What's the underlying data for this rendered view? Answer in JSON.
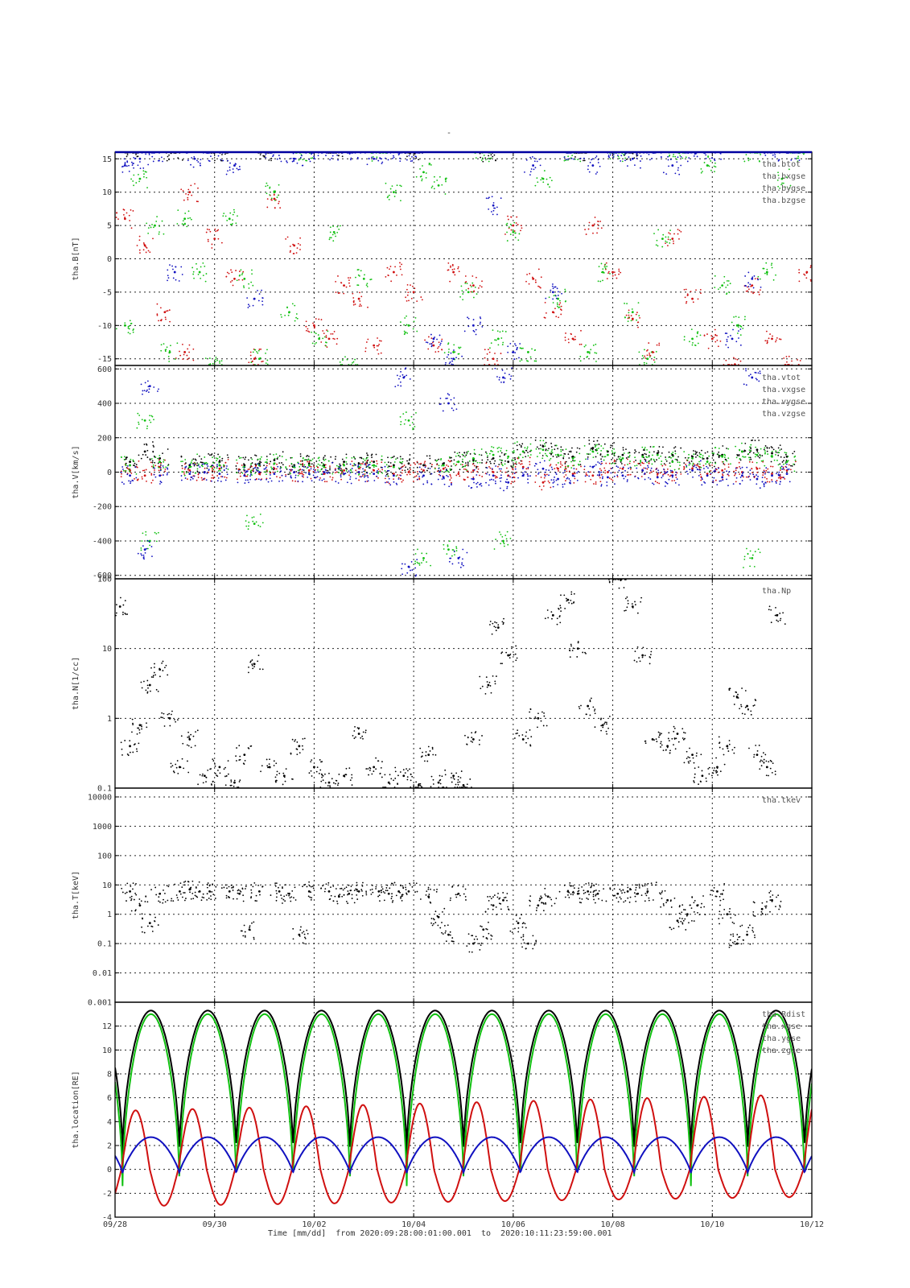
{
  "figure": {
    "title": "-",
    "footer": {
      "axis_label": "Time [mm/dd]",
      "from_label": "from",
      "start": "2020:09:28:00:01:00.001",
      "to_label": "to",
      "end": "2020:10:11:23:59:00.001"
    }
  },
  "chart_data": [
    {
      "type": "scatter",
      "panel_id": "B",
      "ylabel": "tha.B[nT]",
      "ylim": [
        -16,
        16
      ],
      "yticks": [
        -15,
        -10,
        -5,
        0,
        5,
        10,
        15
      ],
      "ytick_labels": [
        "-15",
        "-10",
        "-5",
        "0",
        "5",
        "10",
        "15"
      ],
      "grid": true,
      "legend_position": "top-right",
      "x_unit": "day offset from 09/28 00:00",
      "xlim": [
        0,
        14
      ],
      "series": [
        {
          "name": "tha.btot",
          "color": "#000000",
          "x": [
            0.3,
            1.2,
            2.1,
            3.0,
            4.4,
            6.0,
            7.5,
            9.4,
            10.4
          ],
          "y": [
            16,
            16,
            16,
            16,
            16,
            16,
            16,
            16,
            16
          ]
        },
        {
          "name": "tha.bxgse",
          "color": "#d01010",
          "x": [
            0.2,
            0.6,
            1.0,
            1.4,
            1.5,
            2.0,
            2.4,
            2.8,
            3.2,
            3.6,
            4.0,
            4.3,
            4.6,
            4.9,
            5.2,
            5.6,
            6.0,
            6.4,
            6.8,
            7.2,
            7.6,
            8.0,
            8.4,
            8.8,
            9.2,
            9.6,
            10.0,
            10.4,
            10.8,
            11.2,
            11.6,
            12.0,
            12.4,
            12.8,
            13.2,
            13.6,
            13.9
          ],
          "y": [
            6,
            2,
            -8,
            -14,
            10,
            3,
            -3,
            -15,
            9,
            2,
            -10,
            -12,
            -4,
            -6,
            -13,
            -2,
            -5,
            -13,
            -2,
            -4,
            -15,
            5,
            -3,
            -8,
            -12,
            5,
            -2,
            -9,
            -14,
            3,
            -6,
            -12,
            -16,
            -4,
            -12,
            -16,
            -2
          ]
        },
        {
          "name": "tha.bygse",
          "color": "#10c010",
          "x": [
            0.2,
            0.5,
            0.8,
            1.1,
            1.4,
            1.7,
            2.0,
            2.3,
            2.6,
            2.9,
            3.2,
            3.5,
            3.8,
            4.1,
            4.4,
            4.7,
            5.0,
            5.3,
            5.6,
            5.9,
            6.2,
            6.5,
            6.8,
            7.1,
            7.4,
            7.7,
            8.0,
            8.3,
            8.6,
            8.9,
            9.2,
            9.5,
            9.8,
            10.1,
            10.4,
            10.7,
            11.0,
            11.3,
            11.6,
            11.9,
            12.2,
            12.5,
            12.8,
            13.1,
            13.4,
            13.7
          ],
          "y": [
            -10,
            12,
            5,
            -14,
            6,
            -2,
            -16,
            6,
            -3,
            -15,
            10,
            -8,
            16,
            -12,
            4,
            -16,
            -3,
            16,
            10,
            -10,
            13,
            11,
            -14,
            -5,
            16,
            -12,
            4,
            -14,
            12,
            -6,
            16,
            -14,
            -2,
            16,
            -8,
            -15,
            3,
            16,
            -12,
            14,
            -4,
            -10,
            16,
            -2,
            12,
            16
          ]
        },
        {
          "name": "tha.bzgse",
          "color": "#1010c0",
          "x": [
            0.2,
            0.5,
            0.8,
            1.2,
            1.6,
            2.0,
            2.4,
            2.8,
            3.2,
            3.6,
            4.0,
            4.4,
            4.8,
            5.2,
            5.6,
            6.0,
            6.4,
            6.8,
            7.2,
            7.6,
            8.0,
            8.4,
            8.8,
            9.2,
            9.6,
            10.0,
            10.4,
            10.8,
            11.2,
            11.6,
            12.0,
            12.4,
            12.8,
            13.2,
            13.6
          ],
          "y": [
            14,
            15,
            16,
            -2,
            15,
            16,
            14,
            -6,
            16,
            15,
            16,
            16,
            16,
            15,
            16,
            16,
            -12,
            -15,
            -10,
            8,
            -14,
            14,
            -5,
            16,
            14,
            16,
            15,
            16,
            14,
            16,
            16,
            -12,
            -3,
            16,
            16
          ]
        }
      ]
    },
    {
      "type": "scatter",
      "panel_id": "V",
      "ylabel": "tha.V[km/s]",
      "ylim": [
        -620,
        620
      ],
      "yticks": [
        -600,
        -400,
        -200,
        0,
        200,
        400,
        600
      ],
      "ytick_labels": [
        "-600",
        "-400",
        "-200",
        "0",
        "200",
        "400",
        "600"
      ],
      "grid": true,
      "legend_position": "top-right",
      "x_unit": "day offset from 09/28 00:00",
      "xlim": [
        0,
        14
      ],
      "series": [
        {
          "name": "tha.vtot",
          "color": "#000000",
          "x": [
            0.3,
            0.6,
            0.9,
            1.5,
            1.8,
            2.1,
            2.6,
            2.9,
            3.2,
            3.6,
            3.9,
            4.2,
            4.6,
            4.9,
            5.2,
            5.6,
            5.9,
            6.2,
            6.6,
            6.9,
            7.2,
            7.6,
            7.9,
            8.2,
            8.6,
            8.9,
            9.2,
            9.6,
            9.9,
            10.2,
            10.6,
            10.9,
            11.2,
            11.6,
            11.9,
            12.2,
            12.6,
            12.9,
            13.2,
            13.5
          ],
          "y": [
            60,
            120,
            80,
            40,
            50,
            60,
            40,
            50,
            70,
            40,
            50,
            40,
            60,
            50,
            60,
            40,
            50,
            40,
            50,
            60,
            70,
            80,
            60,
            120,
            150,
            100,
            90,
            140,
            120,
            100,
            100,
            110,
            100,
            90,
            80,
            100,
            120,
            130,
            110,
            90
          ]
        },
        {
          "name": "tha.vxgse",
          "color": "#d01010",
          "x": [
            0.3,
            0.6,
            0.9,
            1.5,
            1.8,
            2.1,
            2.6,
            2.9,
            3.2,
            3.6,
            3.9,
            4.2,
            4.6,
            4.9,
            5.2,
            5.6,
            5.9,
            6.2,
            6.6,
            6.9,
            7.2,
            7.6,
            7.9,
            8.2,
            8.6,
            8.9,
            9.2,
            9.6,
            9.9,
            10.2,
            10.6,
            10.9,
            11.2,
            11.6,
            11.9,
            12.2,
            12.6,
            12.9,
            13.2,
            13.5
          ],
          "y": [
            10,
            -20,
            30,
            10,
            0,
            20,
            10,
            -10,
            20,
            0,
            10,
            -10,
            10,
            0,
            10,
            -10,
            0,
            10,
            20,
            -10,
            10,
            0,
            -20,
            30,
            -60,
            20,
            -10,
            -20,
            0,
            20,
            10,
            -10,
            0,
            20,
            -10,
            10,
            0,
            20,
            -10,
            10
          ]
        },
        {
          "name": "tha.vygse",
          "color": "#10c010",
          "x": [
            0.3,
            0.6,
            0.7,
            0.9,
            1.5,
            1.8,
            2.1,
            2.6,
            2.8,
            2.9,
            3.2,
            3.6,
            3.9,
            4.2,
            4.6,
            4.9,
            5.2,
            5.6,
            5.9,
            6.2,
            6.6,
            6.7,
            6.9,
            7.2,
            7.6,
            7.8,
            7.9,
            8.2,
            8.6,
            8.9,
            9.2,
            9.6,
            9.9,
            10.2,
            10.6,
            10.9,
            11.2,
            11.6,
            11.9,
            12.2,
            12.6,
            12.8,
            12.9,
            13.2,
            13.5
          ],
          "y": [
            40,
            300,
            -400,
            60,
            30,
            50,
            40,
            30,
            -300,
            40,
            50,
            30,
            40,
            30,
            40,
            30,
            40,
            30,
            300,
            -500,
            40,
            -450,
            60,
            80,
            100,
            -400,
            90,
            120,
            130,
            100,
            80,
            120,
            100,
            80,
            90,
            100,
            60,
            80,
            60,
            90,
            120,
            -500,
            100,
            90,
            60
          ]
        },
        {
          "name": "tha.vzgse",
          "color": "#1010c0",
          "x": [
            0.3,
            0.6,
            0.7,
            0.9,
            1.5,
            1.8,
            2.1,
            2.6,
            2.9,
            3.2,
            3.6,
            3.9,
            4.2,
            4.6,
            4.9,
            5.2,
            5.6,
            5.8,
            5.9,
            6.2,
            6.6,
            6.7,
            6.9,
            7.2,
            7.6,
            7.8,
            7.9,
            8.2,
            8.6,
            8.9,
            9.2,
            9.6,
            9.9,
            10.2,
            10.6,
            10.9,
            11.2,
            11.6,
            11.9,
            12.2,
            12.6,
            12.8,
            12.9,
            13.2,
            13.5
          ],
          "y": [
            -20,
            -450,
            500,
            -20,
            -10,
            0,
            -10,
            -20,
            0,
            -10,
            0,
            -10,
            0,
            -10,
            0,
            -10,
            -20,
            550,
            -550,
            -20,
            -30,
            400,
            -500,
            -40,
            -20,
            550,
            -60,
            -20,
            20,
            -40,
            -20,
            30,
            -30,
            -20,
            10,
            -30,
            -20,
            10,
            -20,
            -30,
            -20,
            550,
            -40,
            -20,
            -10
          ]
        }
      ]
    },
    {
      "type": "scatter",
      "panel_id": "N",
      "ylabel": "tha.N[1/cc]",
      "yscale": "log",
      "ylim": [
        0.1,
        100
      ],
      "yticks": [
        0.1,
        1,
        10,
        100
      ],
      "ytick_labels": [
        "0.1",
        "1",
        "10",
        "100"
      ],
      "grid": true,
      "legend_position": "top-right",
      "x_unit": "day offset from 09/28 00:00",
      "xlim": [
        0,
        14
      ],
      "series": [
        {
          "name": "tha.Np",
          "color": "#000000",
          "x": [
            0.1,
            0.3,
            0.5,
            0.7,
            0.9,
            1.1,
            1.3,
            1.5,
            1.8,
            2.1,
            2.4,
            2.6,
            2.8,
            3.1,
            3.4,
            3.7,
            4.0,
            4.3,
            4.6,
            4.9,
            5.2,
            5.5,
            5.8,
            6.1,
            6.3,
            6.5,
            6.8,
            7.0,
            7.2,
            7.5,
            7.7,
            7.9,
            8.2,
            8.5,
            8.8,
            9.1,
            9.3,
            9.5,
            9.8,
            10.1,
            10.4,
            10.6,
            10.8,
            11.1,
            11.3,
            11.6,
            11.8,
            12.1,
            12.3,
            12.5,
            12.7,
            12.9,
            13.1,
            13.3
          ],
          "y": [
            40,
            0.4,
            0.8,
            3,
            5,
            1,
            0.2,
            0.5,
            0.15,
            0.2,
            0.12,
            0.3,
            6,
            0.2,
            0.15,
            0.4,
            0.2,
            0.12,
            0.15,
            0.6,
            0.2,
            0.12,
            0.15,
            0.11,
            0.3,
            0.12,
            0.15,
            0.11,
            0.5,
            3,
            20,
            8,
            0.5,
            1,
            30,
            50,
            10,
            1.5,
            0.8,
            100,
            40,
            8,
            0.5,
            0.4,
            0.6,
            0.3,
            0.15,
            0.2,
            0.4,
            2,
            1.5,
            0.3,
            0.2,
            30
          ]
        }
      ]
    },
    {
      "type": "scatter",
      "panel_id": "T",
      "ylabel": "tha.T[keV]",
      "yscale": "log",
      "ylim": [
        0.001,
        20000
      ],
      "yticks": [
        0.001,
        0.01,
        0.1,
        1,
        10,
        100,
        1000,
        10000
      ],
      "ytick_labels": [
        "0.001",
        "0.01",
        "0.1",
        "1",
        "10",
        "100",
        "1000",
        "10000"
      ],
      "grid": true,
      "legend_position": "top-right",
      "x_unit": "day offset from 09/28 00:00",
      "xlim": [
        0,
        14
      ],
      "series": [
        {
          "name": "tha.tkev",
          "color": "#000000",
          "x": [
            0.3,
            0.5,
            0.7,
            0.9,
            1.3,
            1.5,
            1.7,
            1.9,
            2.3,
            2.5,
            2.7,
            2.9,
            3.3,
            3.5,
            3.7,
            3.9,
            4.3,
            4.5,
            4.7,
            4.9,
            5.3,
            5.5,
            5.7,
            5.9,
            6.3,
            6.5,
            6.7,
            6.9,
            7.2,
            7.4,
            7.6,
            7.8,
            8.1,
            8.3,
            8.5,
            8.7,
            9.1,
            9.3,
            9.5,
            9.7,
            10.1,
            10.3,
            10.5,
            10.7,
            11.1,
            11.3,
            11.5,
            11.7,
            12.1,
            12.3,
            12.5,
            12.7,
            13.0,
            13.2
          ],
          "y": [
            6,
            2,
            0.5,
            5,
            6,
            7,
            6,
            6,
            6,
            5,
            0.3,
            6,
            6,
            5,
            0.2,
            6,
            6,
            4,
            5,
            6,
            6,
            5,
            6,
            6,
            4,
            0.8,
            0.2,
            5,
            0.1,
            0.3,
            2,
            3,
            0.5,
            0.1,
            2,
            4,
            6,
            5,
            6,
            5,
            5,
            6,
            5,
            6,
            3,
            0.6,
            1,
            2,
            6,
            1,
            0.1,
            0.2,
            1.5,
            3
          ]
        }
      ]
    },
    {
      "type": "line",
      "panel_id": "Loc",
      "ylabel": "tha.location[RE]",
      "ylim": [
        -4,
        14
      ],
      "yticks": [
        -4,
        -2,
        0,
        2,
        4,
        6,
        8,
        10,
        12
      ],
      "ytick_labels": [
        "-4",
        "-2",
        "0",
        "2",
        "4",
        "6",
        "8",
        "10",
        "12"
      ],
      "grid": true,
      "legend_position": "top-right",
      "x_unit": "day offset from 09/28 00:00",
      "xlim": [
        0,
        14
      ],
      "xticks": [
        0,
        2,
        4,
        6,
        8,
        10,
        12,
        14
      ],
      "xtick_labels": [
        "09/28",
        "09/30",
        "10/02",
        "10/04",
        "10/06",
        "10/08",
        "10/10",
        "10/12"
      ],
      "orbit": {
        "period_days": 1.142,
        "perigee_day": 0.15,
        "rdist": {
          "min": 1.2,
          "max": 13.3
        },
        "xgse": {
          "min": -1.4,
          "max": 13.0
        },
        "ygse": {
          "min": -3.1,
          "max": 4.9,
          "max_end": 6.3,
          "min_end": -2.3
        },
        "zgse": {
          "min": -0.3,
          "max": 2.7
        }
      },
      "series": [
        {
          "name": "tha.Rdist",
          "color": "#000000"
        },
        {
          "name": "tha.xgse",
          "color": "#10c010"
        },
        {
          "name": "tha.ygse",
          "color": "#d01010"
        },
        {
          "name": "tha.zgse",
          "color": "#1010c0"
        }
      ]
    }
  ]
}
